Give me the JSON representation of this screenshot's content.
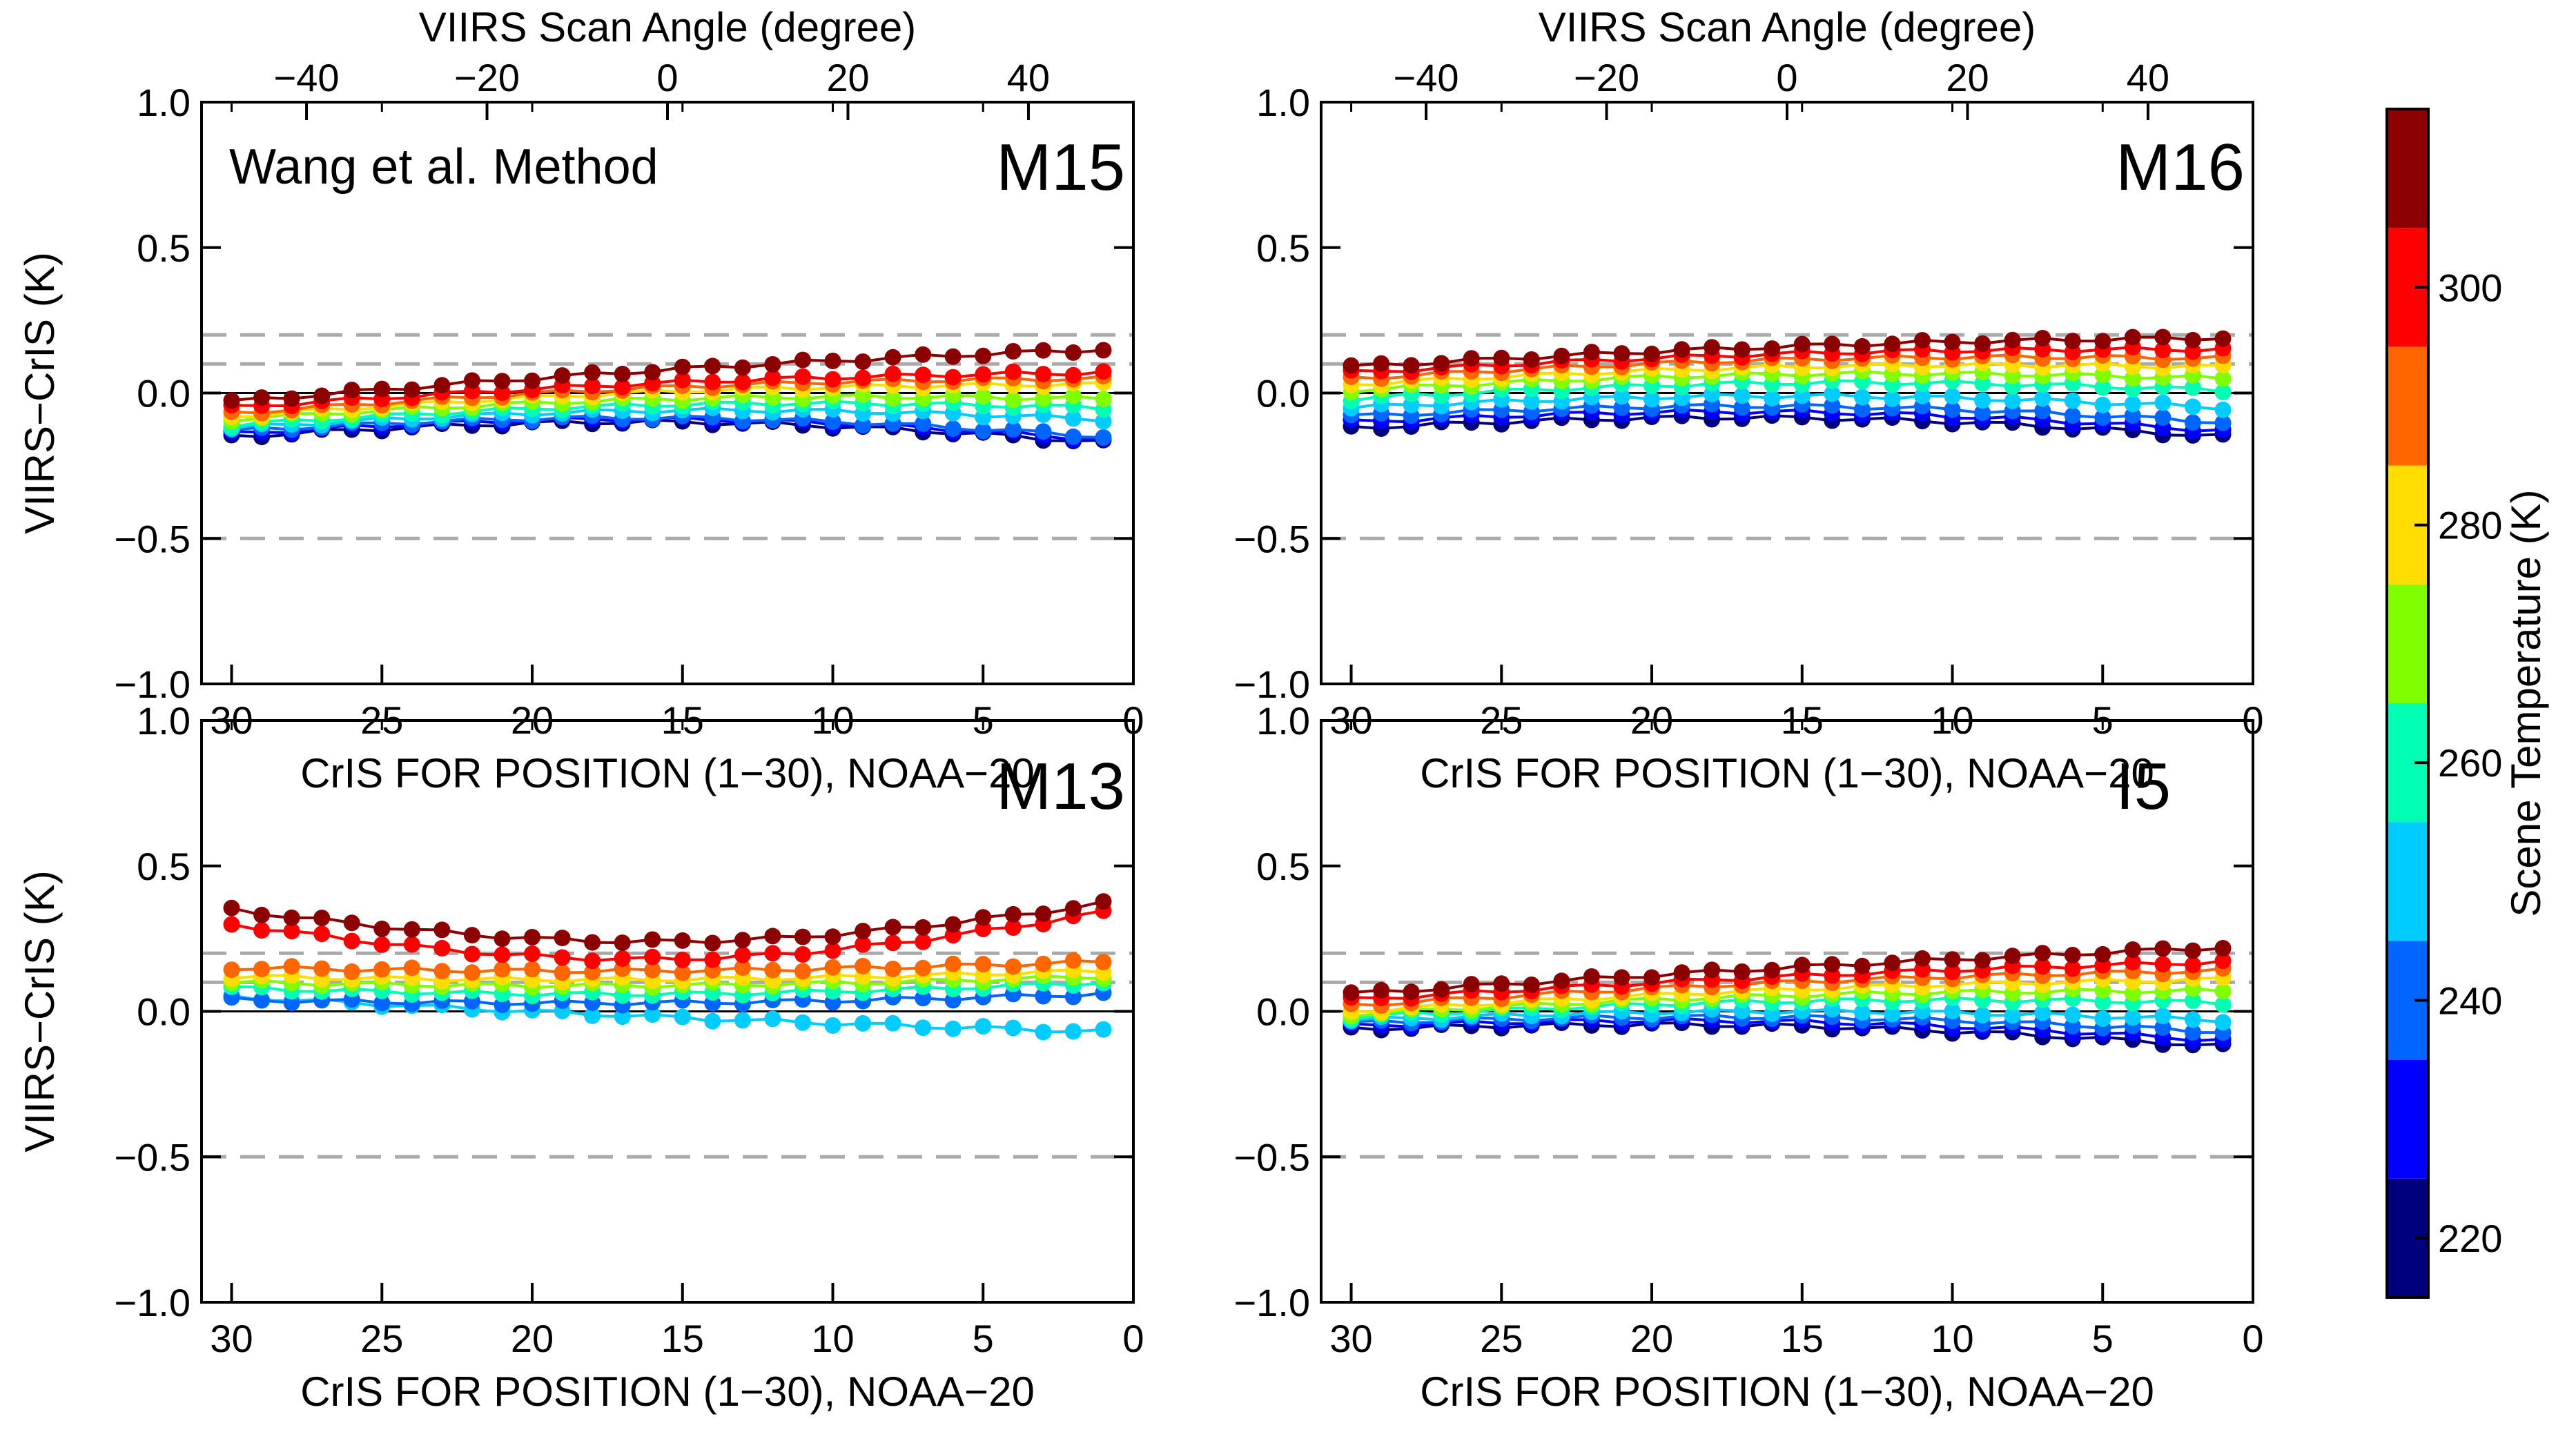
{
  "chart_data": [
    {
      "type": "line",
      "band": "M15",
      "annotation": "Wang et al. Method",
      "xlabel": "CrIS FOR POSITION (1−30), NOAA−20",
      "ylabel": "VIIRS−CrIS (K)",
      "top_xlabel": "VIIRS Scan Angle (degree)",
      "xlim": [
        31,
        0
      ],
      "ylim": [
        -1.0,
        1.0
      ],
      "reference_lines": [
        0.2,
        0.1,
        0.0,
        -0.5
      ],
      "series": [
        {
          "name": "220 K",
          "color": "#00007f",
          "start": -0.15,
          "end": -0.17,
          "bow": 0.06
        },
        {
          "name": "230 K",
          "color": "#0000ff",
          "start": -0.14,
          "end": -0.16,
          "bow": 0.06
        },
        {
          "name": "240 K",
          "color": "#0066ff",
          "start": -0.13,
          "end": -0.15,
          "bow": 0.055
        },
        {
          "name": "250 K",
          "color": "#00ccff",
          "start": -0.12,
          "end": -0.09,
          "bow": 0.045
        },
        {
          "name": "260 K",
          "color": "#00ffb2",
          "start": -0.11,
          "end": -0.05,
          "bow": 0.04
        },
        {
          "name": "270 K",
          "color": "#7fff00",
          "start": -0.09,
          "end": -0.02,
          "bow": 0.035
        },
        {
          "name": "280 K",
          "color": "#ffdd00",
          "start": -0.08,
          "end": 0.03,
          "bow": 0.03
        },
        {
          "name": "290 K",
          "color": "#ff6600",
          "start": -0.07,
          "end": 0.05,
          "bow": 0.03
        },
        {
          "name": "300 K",
          "color": "#ff0000",
          "start": -0.05,
          "end": 0.07,
          "bow": 0.025
        },
        {
          "name": "310 K",
          "color": "#8b0000",
          "start": -0.03,
          "end": 0.15,
          "bow": 0.02
        }
      ]
    },
    {
      "type": "line",
      "band": "M16",
      "xlabel": "CrIS FOR POSITION (1−30), NOAA−20",
      "ylabel": "",
      "top_xlabel": "VIIRS Scan Angle (degree)",
      "xlim": [
        31,
        0
      ],
      "ylim": [
        -1.0,
        1.0
      ],
      "reference_lines": [
        0.2,
        0.1,
        0.0,
        -0.5
      ],
      "series": [
        {
          "name": "220 K",
          "color": "#00007f",
          "start": -0.12,
          "end": -0.15,
          "bow": 0.05
        },
        {
          "name": "230 K",
          "color": "#0000ff",
          "start": -0.1,
          "end": -0.13,
          "bow": 0.05
        },
        {
          "name": "240 K",
          "color": "#0066ff",
          "start": -0.08,
          "end": -0.1,
          "bow": 0.045
        },
        {
          "name": "250 K",
          "color": "#00ccff",
          "start": -0.05,
          "end": -0.05,
          "bow": 0.04
        },
        {
          "name": "260 K",
          "color": "#00ffb2",
          "start": -0.02,
          "end": 0.01,
          "bow": 0.04
        },
        {
          "name": "270 K",
          "color": "#7fff00",
          "start": 0.01,
          "end": 0.05,
          "bow": 0.035
        },
        {
          "name": "280 K",
          "color": "#ffdd00",
          "start": 0.03,
          "end": 0.09,
          "bow": 0.03
        },
        {
          "name": "290 K",
          "color": "#ff6600",
          "start": 0.05,
          "end": 0.12,
          "bow": 0.03
        },
        {
          "name": "300 K",
          "color": "#ff0000",
          "start": 0.07,
          "end": 0.15,
          "bow": 0.025
        },
        {
          "name": "310 K",
          "color": "#8b0000",
          "start": 0.09,
          "end": 0.19,
          "bow": 0.02
        }
      ]
    },
    {
      "type": "line",
      "band": "M13",
      "xlabel": "CrIS FOR POSITION (1−30), NOAA−20",
      "ylabel": "VIIRS−CrIS (K)",
      "top_xlabel": "",
      "xlim": [
        31,
        0
      ],
      "ylim": [
        -1.0,
        1.0
      ],
      "reference_lines": [
        0.2,
        0.1,
        0.0,
        -0.5
      ],
      "series": [
        {
          "name": "250 K",
          "color": "#00ccff",
          "start": 0.05,
          "end": -0.07,
          "bow": -0.01
        },
        {
          "name": "245 K",
          "color": "#0066ff",
          "start": 0.04,
          "end": 0.06,
          "bow": -0.02
        },
        {
          "name": "260 K",
          "color": "#00ffb2",
          "start": 0.08,
          "end": 0.1,
          "bow": -0.03
        },
        {
          "name": "270 K",
          "color": "#7fff00",
          "start": 0.1,
          "end": 0.12,
          "bow": -0.02
        },
        {
          "name": "280 K",
          "color": "#ffdd00",
          "start": 0.12,
          "end": 0.14,
          "bow": -0.02
        },
        {
          "name": "290 K",
          "color": "#ff6600",
          "start": 0.15,
          "end": 0.17,
          "bow": -0.02
        },
        {
          "name": "300 K",
          "color": "#ff0000",
          "start": 0.3,
          "end": 0.34,
          "bow": -0.14
        },
        {
          "name": "310 K",
          "color": "#8b0000",
          "start": 0.35,
          "end": 0.37,
          "bow": -0.12
        }
      ]
    },
    {
      "type": "line",
      "band": "I5",
      "xlabel": "CrIS FOR POSITION (1−30), NOAA−20",
      "ylabel": "",
      "top_xlabel": "",
      "xlim": [
        31,
        0
      ],
      "ylim": [
        -1.0,
        1.0
      ],
      "reference_lines": [
        0.2,
        0.1,
        0.0,
        -0.5
      ],
      "series": [
        {
          "name": "220 K",
          "color": "#00007f",
          "start": -0.06,
          "end": -0.12,
          "bow": 0.04
        },
        {
          "name": "230 K",
          "color": "#0000ff",
          "start": -0.05,
          "end": -0.1,
          "bow": 0.04
        },
        {
          "name": "240 K",
          "color": "#0066ff",
          "start": -0.04,
          "end": -0.07,
          "bow": 0.035
        },
        {
          "name": "250 K",
          "color": "#00ccff",
          "start": -0.03,
          "end": -0.03,
          "bow": 0.03
        },
        {
          "name": "260 K",
          "color": "#00ffb2",
          "start": -0.02,
          "end": 0.03,
          "bow": 0.03
        },
        {
          "name": "270 K",
          "color": "#7fff00",
          "start": -0.01,
          "end": 0.07,
          "bow": 0.025
        },
        {
          "name": "280 K",
          "color": "#ffdd00",
          "start": 0.0,
          "end": 0.11,
          "bow": 0.02
        },
        {
          "name": "290 K",
          "color": "#ff6600",
          "start": 0.02,
          "end": 0.14,
          "bow": 0.02
        },
        {
          "name": "300 K",
          "color": "#ff0000",
          "start": 0.04,
          "end": 0.17,
          "bow": 0.015
        },
        {
          "name": "310 K",
          "color": "#8b0000",
          "start": 0.06,
          "end": 0.22,
          "bow": 0.01
        }
      ]
    }
  ],
  "axes": {
    "bottom_ticks": [
      30,
      25,
      20,
      15,
      10,
      5,
      0
    ],
    "top_ticks": [
      -40,
      -20,
      0,
      20,
      40
    ],
    "y_ticks": [
      1.0,
      0.5,
      0.0,
      -0.5,
      -1.0
    ],
    "bottom_tick_labels": [
      "30",
      "25",
      "20",
      "15",
      "10",
      "5",
      "0"
    ],
    "top_tick_labels": [
      "−40",
      "−20",
      "0",
      "20",
      "40"
    ],
    "y_tick_labels": [
      "1.0",
      "0.5",
      "0.0",
      "−0.5",
      "−1.0"
    ],
    "scan_angle_at_for1": 48.3,
    "scan_angle_at_for30": -48.3
  },
  "colorbar": {
    "title": "Scene Temperature (K)",
    "range": [
      215,
      315
    ],
    "tick_values": [
      220,
      240,
      260,
      280,
      300
    ],
    "tick_labels": [
      "220",
      "240",
      "260",
      "280",
      "300"
    ],
    "bins": [
      {
        "from": 215,
        "to": 225,
        "color": "#00007f"
      },
      {
        "from": 225,
        "to": 235,
        "color": "#0000ff"
      },
      {
        "from": 235,
        "to": 245,
        "color": "#0066ff"
      },
      {
        "from": 245,
        "to": 255,
        "color": "#00ccff"
      },
      {
        "from": 255,
        "to": 265,
        "color": "#00ffb2"
      },
      {
        "from": 265,
        "to": 275,
        "color": "#7fff00"
      },
      {
        "from": 275,
        "to": 285,
        "color": "#ffdd00"
      },
      {
        "from": 285,
        "to": 295,
        "color": "#ff6600"
      },
      {
        "from": 295,
        "to": 305,
        "color": "#ff0000"
      },
      {
        "from": 305,
        "to": 315,
        "color": "#8b0000"
      }
    ]
  }
}
